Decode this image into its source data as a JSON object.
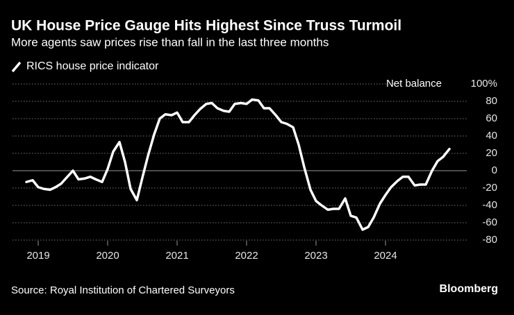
{
  "chart_data": {
    "type": "line",
    "title": "UK House Price Gauge Hits Highest Since Truss Turmoil",
    "subtitle": "More agents saw prices rise than fall in the last three months",
    "y_label": "Net balance",
    "source": "Source: Royal Institution of Chartered Surveyors",
    "brand": "Bloomberg",
    "x": [
      2018.83,
      2018.92,
      2019.0,
      2019.08,
      2019.17,
      2019.25,
      2019.33,
      2019.42,
      2019.5,
      2019.58,
      2019.67,
      2019.75,
      2019.83,
      2019.92,
      2020.0,
      2020.08,
      2020.17,
      2020.25,
      2020.33,
      2020.42,
      2020.5,
      2020.58,
      2020.67,
      2020.75,
      2020.83,
      2020.92,
      2021.0,
      2021.08,
      2021.17,
      2021.25,
      2021.33,
      2021.42,
      2021.5,
      2021.58,
      2021.67,
      2021.75,
      2021.83,
      2021.92,
      2022.0,
      2022.08,
      2022.17,
      2022.25,
      2022.33,
      2022.42,
      2022.5,
      2022.58,
      2022.67,
      2022.75,
      2022.83,
      2022.92,
      2023.0,
      2023.08,
      2023.17,
      2023.25,
      2023.33,
      2023.42,
      2023.5,
      2023.58,
      2023.67,
      2023.75,
      2023.83,
      2023.92,
      2024.0,
      2024.08,
      2024.17,
      2024.25,
      2024.33,
      2024.42,
      2024.5,
      2024.58,
      2024.67,
      2024.75,
      2024.83,
      2024.92
    ],
    "series": [
      {
        "name": "RICS house price indicator",
        "color": "#ffffff",
        "values": [
          -13,
          -11,
          -19,
          -21,
          -22,
          -19,
          -15,
          -7,
          0,
          -10,
          -9,
          -7,
          -10,
          -13,
          2,
          22,
          33,
          10,
          -21,
          -34,
          -8,
          17,
          42,
          60,
          65,
          64,
          67,
          56,
          56,
          64,
          71,
          77,
          78,
          72,
          69,
          68,
          77,
          78,
          77,
          82,
          81,
          72,
          72,
          64,
          56,
          54,
          50,
          30,
          4,
          -22,
          -35,
          -40,
          -45,
          -44,
          -44,
          -32,
          -52,
          -54,
          -68,
          -65,
          -54,
          -38,
          -28,
          -19,
          -12,
          -7,
          -7,
          -17,
          -16,
          -16,
          0,
          11,
          16,
          25
        ]
      }
    ],
    "xlim": [
      2018.63,
      2025.17
    ],
    "xticks": [
      2019,
      2020,
      2021,
      2022,
      2023,
      2024
    ],
    "ylim": [
      -80,
      100
    ],
    "yticks": [
      -80,
      -60,
      -40,
      -20,
      0,
      20,
      40,
      60,
      80,
      {
        "value": 100,
        "label": "100%"
      }
    ],
    "grid": true
  }
}
